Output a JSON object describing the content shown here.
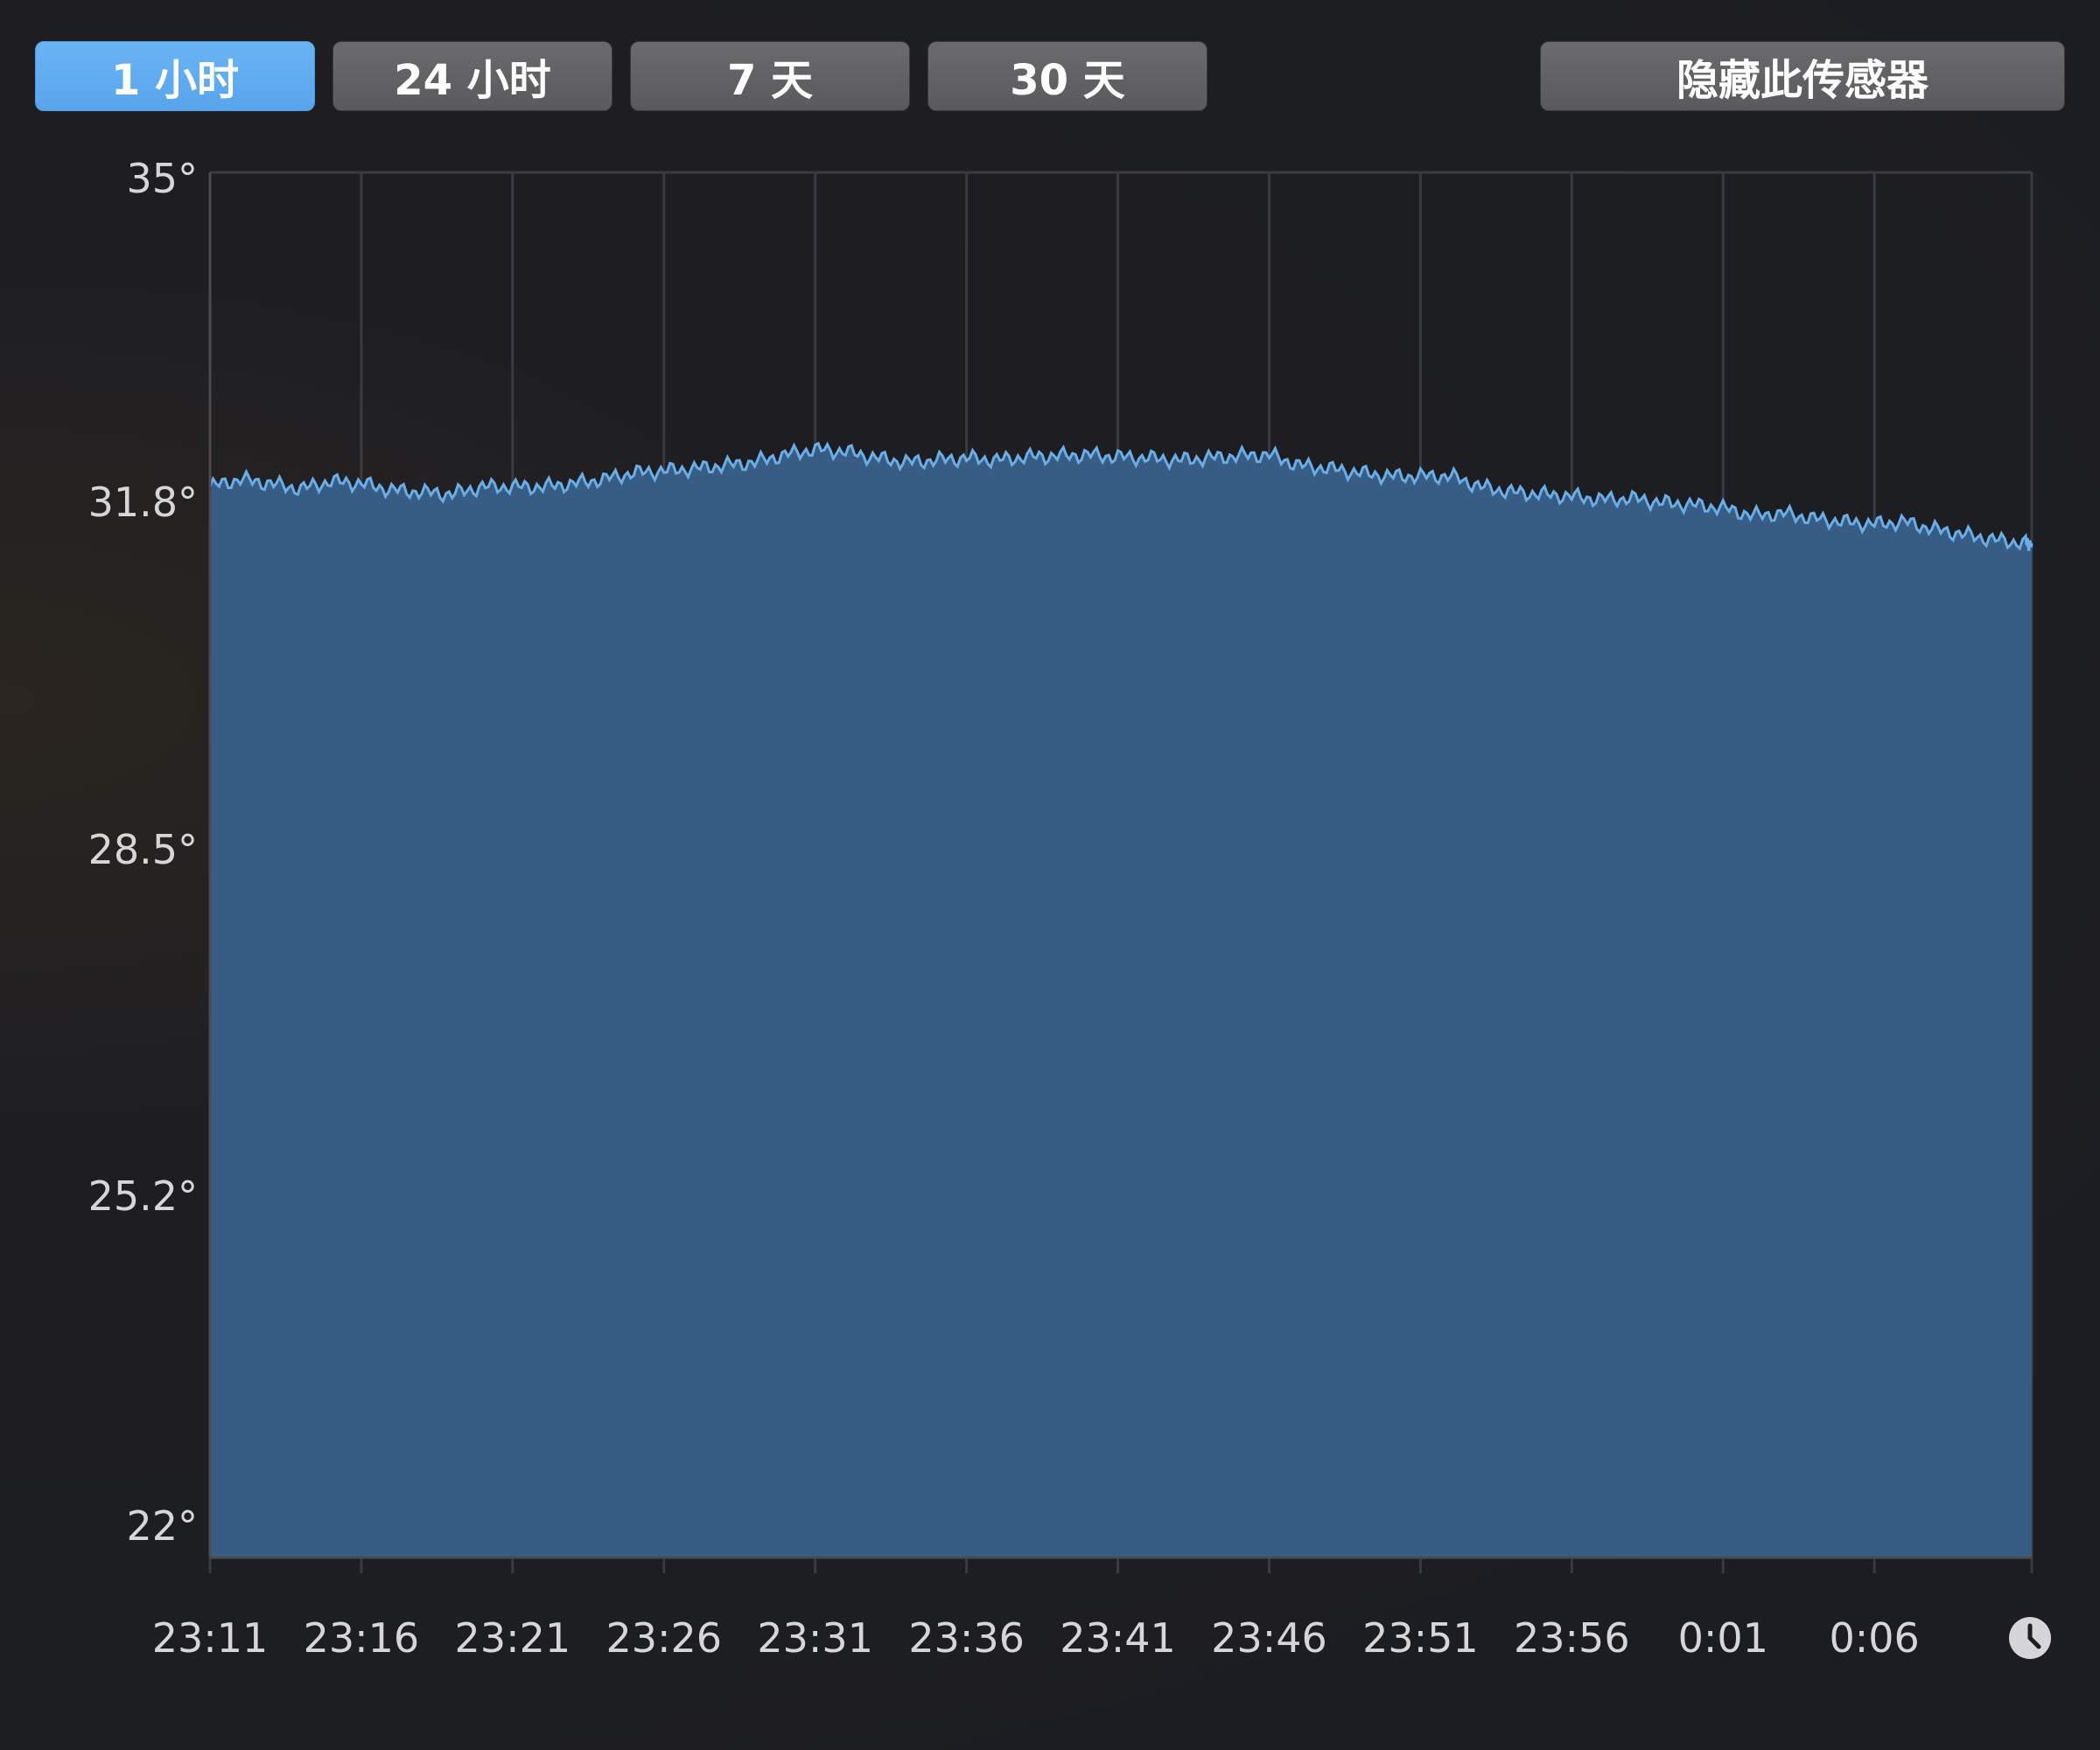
{
  "toolbar": {
    "buttons": [
      {
        "label": "1 小时",
        "active": true
      },
      {
        "label": "24 小时",
        "active": false
      },
      {
        "label": "7 天",
        "active": false
      },
      {
        "label": "30 天",
        "active": false
      }
    ],
    "hide_sensor_label": "隐藏此传感器"
  },
  "colors": {
    "accent": "#62aef3",
    "area_fill": "#375d84",
    "line": "#6aaee8",
    "grid": "#3a3b40",
    "background": "#1e1e22"
  },
  "clock_icon": "clock-icon",
  "chart_data": {
    "type": "area",
    "title": "",
    "xlabel": "",
    "ylabel": "",
    "ylim": [
      22,
      35
    ],
    "y_ticks": [
      "35°",
      "31.8°",
      "28.5°",
      "25.2°",
      "22°"
    ],
    "y_tick_values": [
      35,
      31.8,
      28.5,
      25.2,
      22
    ],
    "x_ticks": [
      "23:11",
      "23:16",
      "23:21",
      "23:26",
      "23:31",
      "23:36",
      "23:41",
      "23:46",
      "23:51",
      "23:56",
      "0:01",
      "0:06"
    ],
    "x_tick_minutes": [
      0,
      5,
      10,
      15,
      20,
      25,
      30,
      35,
      40,
      45,
      50,
      55
    ],
    "xlim_minutes": [
      0,
      60.2
    ],
    "grid": true,
    "series": [
      {
        "x": [
          0,
          1,
          2,
          3,
          4,
          5,
          6,
          7,
          8,
          9,
          10,
          11,
          12,
          13,
          14,
          15,
          16,
          17,
          18,
          19,
          20,
          21,
          22,
          23,
          24,
          25,
          26,
          27,
          28,
          29,
          30,
          31,
          32,
          33,
          34,
          35,
          36,
          37,
          38,
          39,
          40,
          41,
          42,
          43,
          44,
          45,
          46,
          47,
          48,
          49,
          50,
          51,
          52,
          53,
          54,
          55,
          56,
          57,
          58,
          59,
          60,
          60.2
        ],
        "values": [
          32.05,
          32.12,
          32.08,
          32.03,
          32.1,
          32.08,
          32.02,
          32.0,
          31.98,
          32.05,
          32.05,
          32.05,
          32.08,
          32.12,
          32.18,
          32.2,
          32.22,
          32.25,
          32.28,
          32.35,
          32.4,
          32.38,
          32.32,
          32.28,
          32.3,
          32.32,
          32.3,
          32.33,
          32.34,
          32.35,
          32.33,
          32.32,
          32.3,
          32.32,
          32.34,
          32.35,
          32.25,
          32.22,
          32.18,
          32.15,
          32.15,
          32.15,
          32.05,
          32.0,
          31.98,
          31.96,
          31.93,
          31.94,
          31.9,
          31.88,
          31.85,
          31.78,
          31.8,
          31.75,
          31.72,
          31.7,
          31.72,
          31.65,
          31.6,
          31.55,
          31.52,
          31.52
        ]
      }
    ]
  }
}
